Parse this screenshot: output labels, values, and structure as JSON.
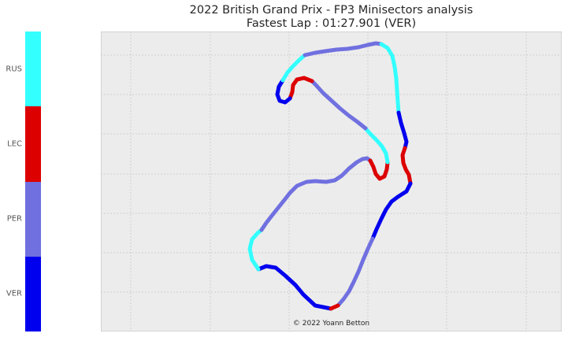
{
  "title": {
    "line1": "2022 British Grand Prix - FP3 Minisectors analysis",
    "line2": "Fastest Lap : 01:27.901 (VER)"
  },
  "credit": "© 2022 Yoann Betton",
  "chart_data": {
    "type": "line",
    "grid": true,
    "background": "#ececec",
    "legend": {
      "placement": "left",
      "entries": [
        {
          "name": "RUS",
          "color": "#33ffff"
        },
        {
          "name": "LEC",
          "color": "#dd0000"
        },
        {
          "name": "PER",
          "color": "#7070e0"
        },
        {
          "name": "VER",
          "color": "#0000ee"
        }
      ]
    },
    "segments": [
      {
        "driver": "VER",
        "points": [
          [
            420,
            392
          ],
          [
            400,
            388
          ],
          [
            385,
            374
          ],
          [
            375,
            362
          ],
          [
            362,
            350
          ],
          [
            350,
            340
          ],
          [
            338,
            338
          ],
          [
            328,
            342
          ]
        ]
      },
      {
        "driver": "RUS",
        "points": [
          [
            328,
            342
          ],
          [
            320,
            330
          ],
          [
            317,
            316
          ],
          [
            320,
            304
          ],
          [
            327,
            296
          ],
          [
            332,
            292
          ]
        ]
      },
      {
        "driver": "PER",
        "points": [
          [
            332,
            292
          ],
          [
            338,
            283
          ],
          [
            345,
            274
          ],
          [
            353,
            264
          ],
          [
            361,
            254
          ],
          [
            368,
            245
          ],
          [
            377,
            236
          ],
          [
            389,
            231
          ],
          [
            400,
            230
          ],
          [
            414,
            231
          ],
          [
            425,
            229
          ],
          [
            434,
            223
          ],
          [
            443,
            214
          ],
          [
            453,
            206
          ],
          [
            460,
            202
          ],
          [
            466,
            201
          ],
          [
            470,
            204
          ]
        ]
      },
      {
        "driver": "LEC",
        "points": [
          [
            470,
            204
          ],
          [
            474,
            212
          ],
          [
            477,
            221
          ],
          [
            482,
            227
          ],
          [
            488,
            224
          ],
          [
            491,
            215
          ],
          [
            492,
            206
          ]
        ]
      },
      {
        "driver": "RUS",
        "points": [
          [
            492,
            206
          ],
          [
            490,
            195
          ],
          [
            485,
            186
          ],
          [
            478,
            178
          ],
          [
            470,
            170
          ],
          [
            464,
            163
          ]
        ]
      },
      {
        "driver": "PER",
        "points": [
          [
            464,
            163
          ],
          [
            454,
            155
          ],
          [
            443,
            147
          ],
          [
            432,
            138
          ],
          [
            421,
            128
          ],
          [
            410,
            118
          ],
          [
            401,
            108
          ],
          [
            396,
            103
          ]
        ]
      },
      {
        "driver": "LEC",
        "points": [
          [
            396,
            103
          ],
          [
            386,
            99
          ],
          [
            377,
            101
          ],
          [
            372,
            108
          ],
          [
            371,
            117
          ],
          [
            368,
            125
          ]
        ]
      },
      {
        "driver": "VER",
        "points": [
          [
            368,
            125
          ],
          [
            362,
            130
          ],
          [
            355,
            128
          ],
          [
            352,
            120
          ],
          [
            354,
            110
          ],
          [
            359,
            102
          ]
        ]
      },
      {
        "driver": "RUS",
        "points": [
          [
            359,
            102
          ],
          [
            365,
            92
          ],
          [
            372,
            84
          ],
          [
            380,
            76
          ],
          [
            387,
            70
          ]
        ]
      },
      {
        "driver": "PER",
        "points": [
          [
            387,
            70
          ],
          [
            400,
            67
          ],
          [
            413,
            65
          ],
          [
            427,
            63
          ],
          [
            441,
            62
          ],
          [
            455,
            60
          ],
          [
            467,
            57
          ],
          [
            477,
            55
          ],
          [
            484,
            56
          ]
        ]
      },
      {
        "driver": "RUS",
        "points": [
          [
            484,
            56
          ],
          [
            492,
            61
          ],
          [
            498,
            71
          ],
          [
            501,
            85
          ],
          [
            503,
            100
          ],
          [
            504,
            115
          ],
          [
            505,
            130
          ],
          [
            506,
            143
          ]
        ]
      },
      {
        "driver": "VER",
        "points": [
          [
            506,
            143
          ],
          [
            509,
            156
          ],
          [
            513,
            169
          ],
          [
            516,
            180
          ],
          [
            514,
            188
          ]
        ]
      },
      {
        "driver": "LEC",
        "points": [
          [
            514,
            188
          ],
          [
            511,
            197
          ],
          [
            512,
            207
          ],
          [
            515,
            215
          ],
          [
            519,
            222
          ],
          [
            521,
            233
          ]
        ]
      },
      {
        "driver": "VER",
        "points": [
          [
            521,
            233
          ],
          [
            516,
            243
          ],
          [
            505,
            250
          ],
          [
            497,
            256
          ],
          [
            490,
            266
          ],
          [
            484,
            278
          ],
          [
            478,
            291
          ],
          [
            473,
            303
          ]
        ]
      },
      {
        "driver": "PER",
        "points": [
          [
            473,
            303
          ],
          [
            467,
            316
          ],
          [
            461,
            330
          ],
          [
            455,
            345
          ],
          [
            449,
            358
          ],
          [
            443,
            370
          ],
          [
            436,
            380
          ],
          [
            429,
            388
          ]
        ]
      },
      {
        "driver": "LEC",
        "points": [
          [
            429,
            388
          ],
          [
            420,
            392
          ]
        ]
      }
    ]
  }
}
